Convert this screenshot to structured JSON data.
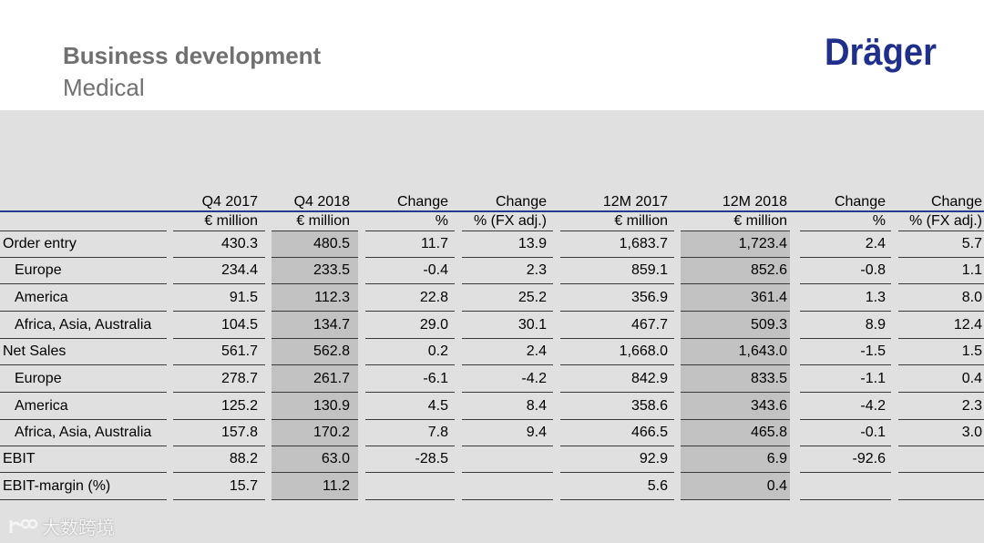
{
  "header": {
    "title": "Business development",
    "subtitle": "Medical",
    "logo_text": "Dräger",
    "logo_color": "#1f2f8a"
  },
  "table": {
    "columns": [
      {
        "top": "Q4 2017",
        "bottom": "€ million"
      },
      {
        "top": "Q4 2018",
        "bottom": "€ million"
      },
      {
        "top": "Change",
        "bottom": "%"
      },
      {
        "top": "Change",
        "bottom": "% (FX adj.)"
      },
      {
        "top": "12M 2017",
        "bottom": "€ million"
      },
      {
        "top": "12M 2018",
        "bottom": "€ million"
      },
      {
        "top": "Change",
        "bottom": "%"
      },
      {
        "top": "Change",
        "bottom": "% (FX adj.)"
      }
    ],
    "rows": [
      {
        "label": "Order entry",
        "values": [
          "430.3",
          "480.5",
          "11.7",
          "13.9",
          "1,683.7",
          "1,723.4",
          "2.4",
          "5.7"
        ]
      },
      {
        "label": "Europe",
        "values": [
          "234.4",
          "233.5",
          "-0.4",
          "2.3",
          "859.1",
          "852.6",
          "-0.8",
          "1.1"
        ]
      },
      {
        "label": "America",
        "values": [
          "91.5",
          "112.3",
          "22.8",
          "25.2",
          "356.9",
          "361.4",
          "1.3",
          "8.0"
        ]
      },
      {
        "label": "Africa, Asia, Australia",
        "values": [
          "104.5",
          "134.7",
          "29.0",
          "30.1",
          "467.7",
          "509.3",
          "8.9",
          "12.4"
        ]
      },
      {
        "label": "Net Sales",
        "values": [
          "561.7",
          "562.8",
          "0.2",
          "2.4",
          "1,668.0",
          "1,643.0",
          "-1.5",
          "1.5"
        ]
      },
      {
        "label": "Europe",
        "values": [
          "278.7",
          "261.7",
          "-6.1",
          "-4.2",
          "842.9",
          "833.5",
          "-1.1",
          "0.4"
        ]
      },
      {
        "label": "America",
        "values": [
          "125.2",
          "130.9",
          "4.5",
          "8.4",
          "358.6",
          "343.6",
          "-4.2",
          "2.3"
        ]
      },
      {
        "label": "Africa, Asia, Australia",
        "values": [
          "157.8",
          "170.2",
          "7.8",
          "9.4",
          "466.5",
          "465.8",
          "-0.1",
          "3.0"
        ]
      },
      {
        "label": "EBIT",
        "values": [
          "88.2",
          "63.0",
          "-28.5",
          "",
          "92.9",
          "6.9",
          "-92.6",
          ""
        ]
      },
      {
        "label": "EBIT-margin (%)",
        "values": [
          "15.7",
          "11.2",
          "",
          "",
          "5.6",
          "0.4",
          "",
          ""
        ]
      }
    ]
  },
  "watermark": {
    "text": "大数跨境"
  }
}
